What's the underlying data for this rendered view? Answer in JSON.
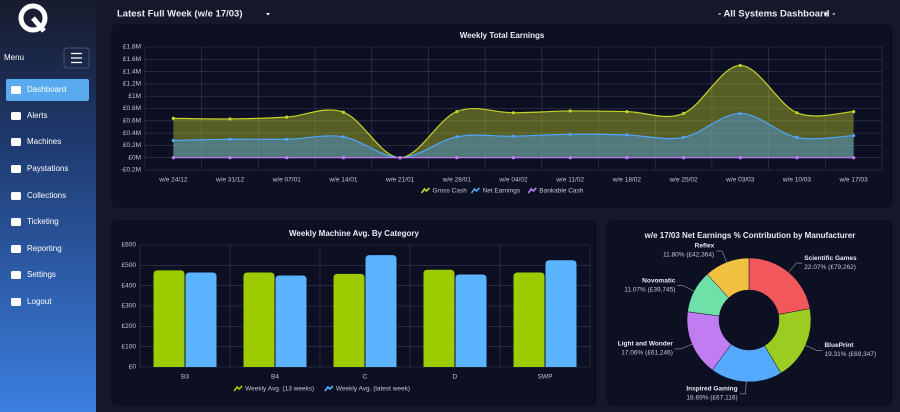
{
  "header": {
    "week": "Latest Full Week (w/e 17/03)",
    "dashboard": "- All Systems Dashboard -"
  },
  "sidebar": {
    "menu_label": "Menu",
    "items": [
      "Dashboard",
      "Alerts",
      "Machines",
      "Paystations",
      "Collections",
      "Ticketing",
      "Reporting",
      "Settings",
      "Logout"
    ]
  },
  "chart_data": [
    {
      "type": "area",
      "title": "Weekly Total Earnings",
      "categories": [
        "w/e 24/12",
        "w/e 31/12",
        "w/e 07/01",
        "w/e 14/01",
        "w/e 21/01",
        "w/e 28/01",
        "w/e 04/02",
        "w/e 11/02",
        "w/e 18/02",
        "w/e 25/02",
        "w/e 03/03",
        "w/e 10/03",
        "w/e 17/03"
      ],
      "series": [
        {
          "name": "Gross Cash",
          "color": "#c5d42a",
          "values": [
            0.64,
            0.63,
            0.66,
            0.74,
            0,
            0.75,
            0.73,
            0.76,
            0.75,
            0.72,
            1.5,
            0.73,
            0.75
          ]
        },
        {
          "name": "Net Earnings",
          "color": "#4da6ff",
          "values": [
            0.28,
            0.3,
            0.3,
            0.34,
            0,
            0.34,
            0.35,
            0.38,
            0.37,
            0.33,
            0.72,
            0.33,
            0.36
          ]
        },
        {
          "name": "Bankable Cash",
          "color": "#c77dff",
          "values": [
            0,
            0,
            0,
            0,
            0,
            0,
            0,
            0,
            0,
            0,
            0,
            0,
            0
          ]
        }
      ],
      "ylim": [
        -0.2,
        1.8
      ],
      "yticks": [
        {
          "value": -0.2,
          "label": "-£0.2M"
        },
        {
          "value": 0,
          "label": "£0M"
        },
        {
          "value": 0.2,
          "label": "£0.2M"
        },
        {
          "value": 0.4,
          "label": "£0.4M"
        },
        {
          "value": 0.6,
          "label": "£0.6M"
        },
        {
          "value": 0.8,
          "label": "£0.8M"
        },
        {
          "value": 1,
          "label": "£1M"
        },
        {
          "value": 1.2,
          "label": "£1.2M"
        },
        {
          "value": 1.4,
          "label": "£1.4M"
        },
        {
          "value": 1.6,
          "label": "£1.6M"
        },
        {
          "value": 1.8,
          "label": "£1.8M"
        }
      ],
      "grid": true
    },
    {
      "type": "bar",
      "title": "Weekly Machine Avg. By Category",
      "categories": [
        "B3",
        "B4",
        "C",
        "D",
        "SWP"
      ],
      "series": [
        {
          "name": "Weekly Avg. (13 weeks)",
          "color": "#9ccc00",
          "values": [
            475,
            465,
            458,
            478,
            465
          ]
        },
        {
          "name": "Weekly Avg. (latest week)",
          "color": "#5ab4ff",
          "values": [
            465,
            450,
            550,
            455,
            525
          ]
        }
      ],
      "ylim": [
        0,
        600
      ],
      "yticks": [
        {
          "value": 0,
          "label": "£0"
        },
        {
          "value": 100,
          "label": "£100"
        },
        {
          "value": 200,
          "label": "£200"
        },
        {
          "value": 300,
          "label": "£300"
        },
        {
          "value": 400,
          "label": "£400"
        },
        {
          "value": 500,
          "label": "£500"
        },
        {
          "value": 600,
          "label": "£600"
        }
      ],
      "grid": true
    },
    {
      "type": "doughnut",
      "title": "w/e 17/03 Net Earnings % Contribution by Manufacturer",
      "categories": [
        "Scientific Games",
        "BluePrint",
        "Inspired Gaming",
        "Light and Wonder",
        "Novomatic",
        "Reflex"
      ],
      "values": [
        22.07,
        19.31,
        18.69,
        17.06,
        11.07,
        11.8
      ],
      "value_labels": [
        "22.07% (£79,262)",
        "19.31% (£69,347)",
        "18.69% (£67,116)",
        "17.06% (£61,246)",
        "11.07% (£39,745)",
        "11.80% (£42,364)"
      ],
      "colors": [
        "#f2575b",
        "#9acd1f",
        "#55aaff",
        "#c07cf0",
        "#6ee0a8",
        "#f0c040"
      ]
    }
  ]
}
